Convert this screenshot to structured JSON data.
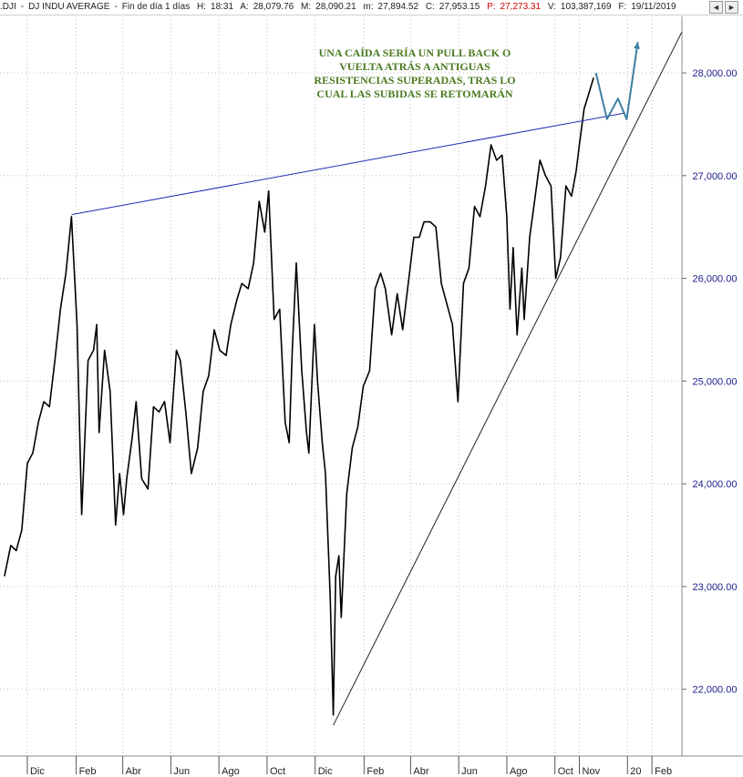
{
  "header": {
    "symbol": ".DJI",
    "name": "DJ INDU AVERAGE",
    "period": "Fin de día 1 días",
    "hour_label": "H:",
    "hour": "18:31",
    "high_label": "A:",
    "high": "28,079.76",
    "max_label": "M:",
    "max": "28,090.21",
    "low_label": "m:",
    "low": "27,894.52",
    "close_label": "C:",
    "close": "27,953.15",
    "p_label": "P:",
    "p": "27,273.31",
    "volume_label": "V:",
    "volume": "103,387,169",
    "date_label": "F:",
    "date": "19/11/2019",
    "left_arrow": "◄",
    "right_arrow": "►"
  },
  "colors": {
    "price_line": "#000000",
    "resistance_line": "#1f2bb5",
    "support_line": "#222222",
    "forecast": "#3d7fa0",
    "annotation_text": "#4a7a1e",
    "axis_text": "#1c1c8c",
    "p_value": "#d40000"
  },
  "chart_data": {
    "type": "line",
    "title": "",
    "xlabel": "",
    "ylabel": "",
    "ylim": [
      21350,
      28550
    ],
    "yticks": [
      22000,
      23000,
      24000,
      25000,
      26000,
      27000,
      28000
    ],
    "ytick_labels": [
      "22,000.00",
      "23,000.00",
      "24,000.00",
      "25,000.00",
      "26,000.00",
      "27,000.00",
      "28,000.00"
    ],
    "x_range": [
      "2017-11-01",
      "2020-03-10"
    ],
    "x_ticks": [
      {
        "date": "2017-12-01",
        "label": "Dic"
      },
      {
        "date": "2018-02-01",
        "label": "Feb"
      },
      {
        "date": "2018-04-01",
        "label": "Abr"
      },
      {
        "date": "2018-06-01",
        "label": "Jun"
      },
      {
        "date": "2018-08-01",
        "label": "Ago"
      },
      {
        "date": "2018-10-01",
        "label": "Oct"
      },
      {
        "date": "2018-12-01",
        "label": "Dic"
      },
      {
        "date": "2019-02-01",
        "label": "Feb"
      },
      {
        "date": "2019-04-01",
        "label": "Abr"
      },
      {
        "date": "2019-06-01",
        "label": "Jun"
      },
      {
        "date": "2019-08-01",
        "label": "Ago"
      },
      {
        "date": "2019-10-01",
        "label": "Oct"
      },
      {
        "date": "2019-11-01",
        "label": "Nov"
      },
      {
        "date": "2020-01-01",
        "label": "20"
      },
      {
        "date": "2020-02-01",
        "label": "Feb"
      }
    ],
    "series": [
      {
        "values": [
          [
            "2017-11-02",
            23100
          ],
          [
            "2017-11-10",
            23400
          ],
          [
            "2017-11-17",
            23350
          ],
          [
            "2017-11-24",
            23550
          ],
          [
            "2017-12-01",
            24200
          ],
          [
            "2017-12-08",
            24300
          ],
          [
            "2017-12-15",
            24600
          ],
          [
            "2017-12-22",
            24800
          ],
          [
            "2017-12-29",
            24750
          ],
          [
            "2018-01-05",
            25200
          ],
          [
            "2018-01-12",
            25700
          ],
          [
            "2018-01-19",
            26050
          ],
          [
            "2018-01-26",
            26600
          ],
          [
            "2018-02-02",
            25550
          ],
          [
            "2018-02-08",
            23700
          ],
          [
            "2018-02-16",
            25200
          ],
          [
            "2018-02-23",
            25300
          ],
          [
            "2018-02-27",
            25550
          ],
          [
            "2018-03-02",
            24500
          ],
          [
            "2018-03-09",
            25300
          ],
          [
            "2018-03-16",
            24900
          ],
          [
            "2018-03-23",
            23600
          ],
          [
            "2018-03-28",
            24100
          ],
          [
            "2018-04-02",
            23700
          ],
          [
            "2018-04-06",
            24050
          ],
          [
            "2018-04-13",
            24450
          ],
          [
            "2018-04-18",
            24800
          ],
          [
            "2018-04-25",
            24050
          ],
          [
            "2018-05-03",
            23950
          ],
          [
            "2018-05-10",
            24750
          ],
          [
            "2018-05-17",
            24700
          ],
          [
            "2018-05-24",
            24800
          ],
          [
            "2018-05-31",
            24400
          ],
          [
            "2018-06-08",
            25300
          ],
          [
            "2018-06-13",
            25200
          ],
          [
            "2018-06-20",
            24700
          ],
          [
            "2018-06-27",
            24100
          ],
          [
            "2018-07-05",
            24350
          ],
          [
            "2018-07-12",
            24900
          ],
          [
            "2018-07-19",
            25050
          ],
          [
            "2018-07-26",
            25500
          ],
          [
            "2018-08-02",
            25300
          ],
          [
            "2018-08-10",
            25250
          ],
          [
            "2018-08-16",
            25550
          ],
          [
            "2018-08-24",
            25800
          ],
          [
            "2018-08-30",
            25950
          ],
          [
            "2018-09-07",
            25900
          ],
          [
            "2018-09-14",
            26150
          ],
          [
            "2018-09-21",
            26750
          ],
          [
            "2018-09-28",
            26450
          ],
          [
            "2018-10-03",
            26850
          ],
          [
            "2018-10-10",
            25600
          ],
          [
            "2018-10-17",
            25700
          ],
          [
            "2018-10-24",
            24600
          ],
          [
            "2018-10-29",
            24400
          ],
          [
            "2018-11-02",
            25300
          ],
          [
            "2018-11-07",
            26150
          ],
          [
            "2018-11-14",
            25100
          ],
          [
            "2018-11-20",
            24500
          ],
          [
            "2018-11-23",
            24300
          ],
          [
            "2018-11-30",
            25550
          ],
          [
            "2018-12-04",
            25000
          ],
          [
            "2018-12-10",
            24400
          ],
          [
            "2018-12-14",
            24100
          ],
          [
            "2018-12-20",
            22900
          ],
          [
            "2018-12-24",
            21750
          ],
          [
            "2018-12-27",
            23100
          ],
          [
            "2018-12-31",
            23300
          ],
          [
            "2019-01-03",
            22700
          ],
          [
            "2019-01-10",
            23900
          ],
          [
            "2019-01-17",
            24350
          ],
          [
            "2019-01-24",
            24550
          ],
          [
            "2019-01-31",
            24950
          ],
          [
            "2019-02-08",
            25100
          ],
          [
            "2019-02-15",
            25900
          ],
          [
            "2019-02-22",
            26050
          ],
          [
            "2019-02-28",
            25900
          ],
          [
            "2019-03-08",
            25450
          ],
          [
            "2019-03-15",
            25850
          ],
          [
            "2019-03-22",
            25500
          ],
          [
            "2019-03-29",
            25950
          ],
          [
            "2019-04-05",
            26400
          ],
          [
            "2019-04-12",
            26400
          ],
          [
            "2019-04-18",
            26550
          ],
          [
            "2019-04-26",
            26550
          ],
          [
            "2019-05-03",
            26500
          ],
          [
            "2019-05-10",
            25950
          ],
          [
            "2019-05-17",
            25750
          ],
          [
            "2019-05-24",
            25550
          ],
          [
            "2019-05-31",
            24800
          ],
          [
            "2019-06-07",
            25950
          ],
          [
            "2019-06-14",
            26100
          ],
          [
            "2019-06-21",
            26700
          ],
          [
            "2019-06-28",
            26600
          ],
          [
            "2019-07-05",
            26900
          ],
          [
            "2019-07-12",
            27300
          ],
          [
            "2019-07-19",
            27150
          ],
          [
            "2019-07-26",
            27200
          ],
          [
            "2019-08-01",
            26600
          ],
          [
            "2019-08-05",
            25700
          ],
          [
            "2019-08-09",
            26300
          ],
          [
            "2019-08-14",
            25450
          ],
          [
            "2019-08-20",
            26100
          ],
          [
            "2019-08-23",
            25600
          ],
          [
            "2019-08-30",
            26400
          ],
          [
            "2019-09-06",
            26800
          ],
          [
            "2019-09-12",
            27150
          ],
          [
            "2019-09-19",
            27000
          ],
          [
            "2019-09-26",
            26900
          ],
          [
            "2019-10-02",
            26000
          ],
          [
            "2019-10-08",
            26200
          ],
          [
            "2019-10-15",
            26900
          ],
          [
            "2019-10-22",
            26800
          ],
          [
            "2019-10-28",
            27050
          ],
          [
            "2019-11-01",
            27300
          ],
          [
            "2019-11-07",
            27650
          ],
          [
            "2019-11-13",
            27800
          ],
          [
            "2019-11-19",
            27953
          ]
        ]
      }
    ],
    "forecast_path": [
      [
        "2019-11-22",
        28000
      ],
      [
        "2019-12-06",
        27550
      ],
      [
        "2019-12-20",
        27750
      ],
      [
        "2019-12-31",
        27550
      ],
      [
        "2020-01-14",
        28300
      ]
    ],
    "trendlines": [
      {
        "from": [
          "2018-01-26",
          26620
        ],
        "to": [
          "2019-12-29",
          27610
        ]
      },
      {
        "from": [
          "2018-12-24",
          21650
        ],
        "to": [
          "2020-03-10",
          28400
        ]
      }
    ],
    "annotations": [
      {
        "lines": [
          "UNA CAÍDA SERÍA UN PULL BACK O",
          "VUELTA ATRÁS A ANTIGUAS",
          "RESISTENCIAS SUPERADAS, TRAS LO",
          "CUAL LAS SUBIDAS SE RETOMARÁN"
        ]
      }
    ]
  }
}
